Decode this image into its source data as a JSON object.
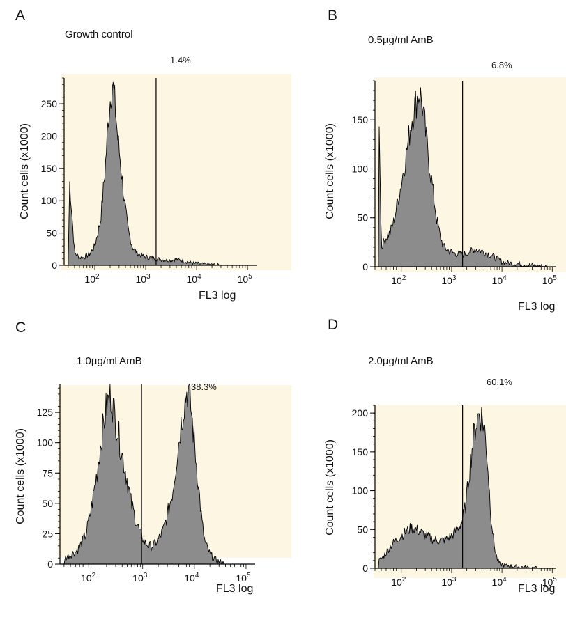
{
  "colors": {
    "background": "#ffffff",
    "plot_background": "#fdf6e3",
    "fill": "#8c8c8c",
    "outline": "#000000"
  },
  "chart_data": [
    {
      "type": "area",
      "panel": "A",
      "title": "Growth control",
      "gate_percent": "1.4%",
      "xlabel": "FL3 log",
      "ylabel": "Count cells (x1000)",
      "x_scale": "log",
      "xlim": [
        25,
        150000
      ],
      "ylim": [
        0,
        290
      ],
      "yticks": [
        0,
        50,
        100,
        150,
        200,
        250
      ],
      "xticks": [
        {
          "base": "10",
          "exp": "2",
          "value": 100
        },
        {
          "base": "10",
          "exp": "3",
          "value": 1000
        },
        {
          "base": "10",
          "exp": "4",
          "value": 10000
        },
        {
          "base": "10",
          "exp": "5",
          "value": 100000
        }
      ],
      "gate_x": 1600,
      "x": [
        30,
        32,
        40,
        50,
        60,
        70,
        80,
        100,
        130,
        160,
        190,
        220,
        250,
        280,
        320,
        380,
        450,
        550,
        700,
        900,
        1200,
        1600,
        2000,
        2500,
        3000,
        4000,
        5000,
        6000,
        7000,
        8000,
        9000,
        10000,
        12000,
        15000,
        20000,
        30000
      ],
      "y": [
        0,
        130,
        20,
        12,
        12,
        15,
        18,
        30,
        70,
        150,
        240,
        285,
        250,
        200,
        160,
        100,
        55,
        28,
        18,
        14,
        12,
        10,
        9,
        8,
        8,
        9,
        8,
        6,
        5,
        4,
        3,
        3,
        2,
        2,
        1,
        0
      ]
    },
    {
      "type": "area",
      "panel": "B",
      "title": "0.5µg/ml AmB",
      "gate_percent": "6.8%",
      "xlabel": "FL3 log",
      "ylabel": "Count cells (x1000)",
      "x_scale": "log",
      "xlim": [
        30,
        120000
      ],
      "ylim": [
        0,
        190
      ],
      "yticks": [
        0,
        50,
        100,
        150
      ],
      "xticks": [
        {
          "base": "10",
          "exp": "2",
          "value": 100
        },
        {
          "base": "10",
          "exp": "3",
          "value": 1000
        },
        {
          "base": "10",
          "exp": "4",
          "value": 10000
        },
        {
          "base": "10",
          "exp": "5",
          "value": 100000
        }
      ],
      "gate_x": 1650,
      "x": [
        35,
        36,
        40,
        50,
        60,
        70,
        80,
        100,
        130,
        160,
        200,
        230,
        260,
        300,
        350,
        420,
        500,
        600,
        700,
        900,
        1100,
        1400,
        1700,
        2000,
        2500,
        3000,
        3500,
        4500,
        6000,
        8000,
        10000,
        13000,
        20000,
        30000,
        50000,
        80000
      ],
      "y": [
        0,
        170,
        20,
        30,
        35,
        45,
        60,
        85,
        120,
        150,
        170,
        180,
        165,
        140,
        110,
        80,
        50,
        30,
        20,
        16,
        14,
        13,
        12,
        14,
        17,
        18,
        17,
        15,
        12,
        8,
        5,
        4,
        3,
        2,
        1,
        0
      ]
    },
    {
      "type": "area",
      "panel": "C",
      "title": "1.0µg/ml AmB",
      "gate_percent": "38.3%",
      "xlabel": "FL3 log",
      "ylabel": "Count cells (x1000)",
      "x_scale": "log",
      "xlim": [
        25,
        150000
      ],
      "ylim": [
        0,
        148
      ],
      "yticks": [
        0,
        25,
        50,
        75,
        100,
        125
      ],
      "xticks": [
        {
          "base": "10",
          "exp": "2",
          "value": 100
        },
        {
          "base": "10",
          "exp": "3",
          "value": 1000
        },
        {
          "base": "10",
          "exp": "4",
          "value": 10000
        },
        {
          "base": "10",
          "exp": "5",
          "value": 100000
        }
      ],
      "gate_x": 950,
      "x": [
        30,
        31,
        40,
        50,
        60,
        80,
        100,
        130,
        160,
        200,
        240,
        280,
        330,
        400,
        500,
        600,
        750,
        900,
        1100,
        1300,
        1600,
        2000,
        2500,
        3000,
        3800,
        4500,
        5500,
        6500,
        7500,
        8500,
        10000,
        12000,
        14000,
        16000,
        20000,
        25000,
        30000,
        40000
      ],
      "y": [
        0,
        5,
        8,
        10,
        14,
        25,
        45,
        75,
        105,
        130,
        140,
        125,
        110,
        90,
        70,
        50,
        35,
        25,
        18,
        15,
        15,
        20,
        28,
        40,
        60,
        85,
        115,
        135,
        145,
        130,
        100,
        65,
        35,
        18,
        8,
        4,
        2,
        0
      ]
    },
    {
      "type": "area",
      "panel": "D",
      "title": "2.0µg/ml AmB",
      "gate_percent": "60.1%",
      "xlabel": "FL3 log",
      "ylabel": "Count cells (x1000)",
      "x_scale": "log",
      "xlim": [
        30,
        120000
      ],
      "ylim": [
        0,
        210
      ],
      "yticks": [
        0,
        50,
        100,
        150,
        200
      ],
      "xticks": [
        {
          "base": "10",
          "exp": "2",
          "value": 100
        },
        {
          "base": "10",
          "exp": "3",
          "value": 1000
        },
        {
          "base": "10",
          "exp": "4",
          "value": 10000
        },
        {
          "base": "10",
          "exp": "5",
          "value": 100000
        }
      ],
      "gate_x": 1650,
      "x": [
        35,
        36,
        40,
        50,
        60,
        70,
        85,
        100,
        130,
        160,
        200,
        250,
        300,
        400,
        500,
        650,
        800,
        1000,
        1300,
        1600,
        1900,
        2200,
        2600,
        3000,
        3500,
        4000,
        4500,
        5000,
        5500,
        6000,
        7000,
        8000,
        9000,
        11000,
        14000,
        20000,
        30000,
        50000
      ],
      "y": [
        0,
        10,
        12,
        20,
        28,
        33,
        38,
        42,
        48,
        52,
        50,
        46,
        42,
        38,
        36,
        36,
        38,
        42,
        50,
        60,
        80,
        120,
        160,
        185,
        200,
        195,
        180,
        150,
        110,
        70,
        30,
        12,
        6,
        4,
        3,
        2,
        1,
        0
      ]
    }
  ]
}
